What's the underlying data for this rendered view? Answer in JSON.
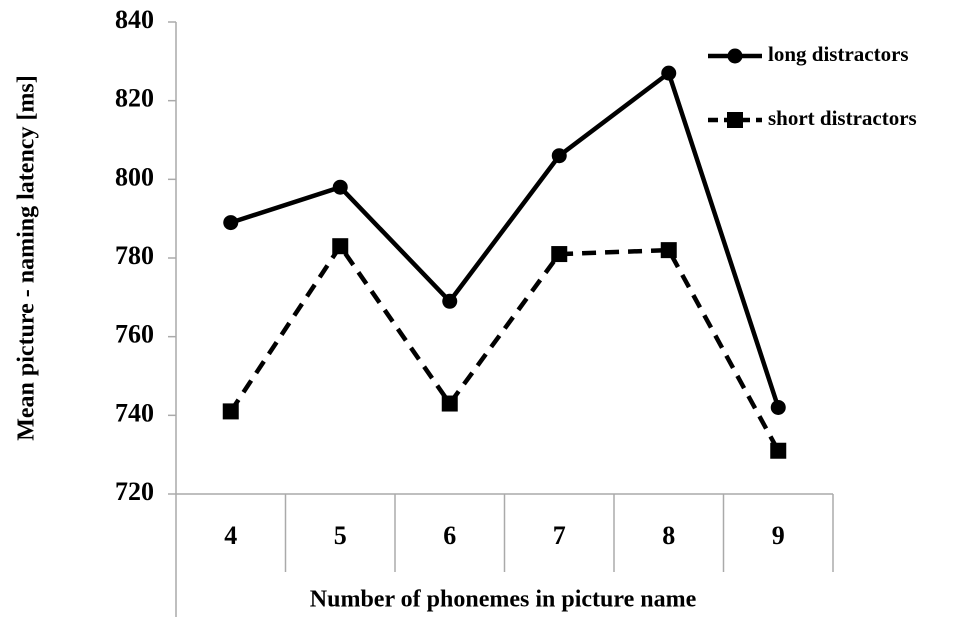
{
  "chart_data": {
    "type": "line",
    "x_label": "Number of phonemes in picture name",
    "y_label": "Mean picture - naming latency [ms]",
    "categories": [
      "4",
      "5",
      "6",
      "7",
      "8",
      "9"
    ],
    "series": [
      {
        "name": "long distractors",
        "color": "#000000",
        "style": "solid",
        "marker": "circle",
        "values": [
          789,
          798,
          769,
          806,
          827,
          742
        ]
      },
      {
        "name": "short distractors",
        "color": "#000000",
        "style": "dashed",
        "marker": "square",
        "values": [
          741,
          783,
          743,
          781,
          782,
          731
        ]
      }
    ],
    "ylim": [
      720,
      840
    ],
    "yticks": [
      720,
      740,
      760,
      780,
      800,
      820,
      840
    ],
    "grid": false,
    "legend": "upper right"
  }
}
